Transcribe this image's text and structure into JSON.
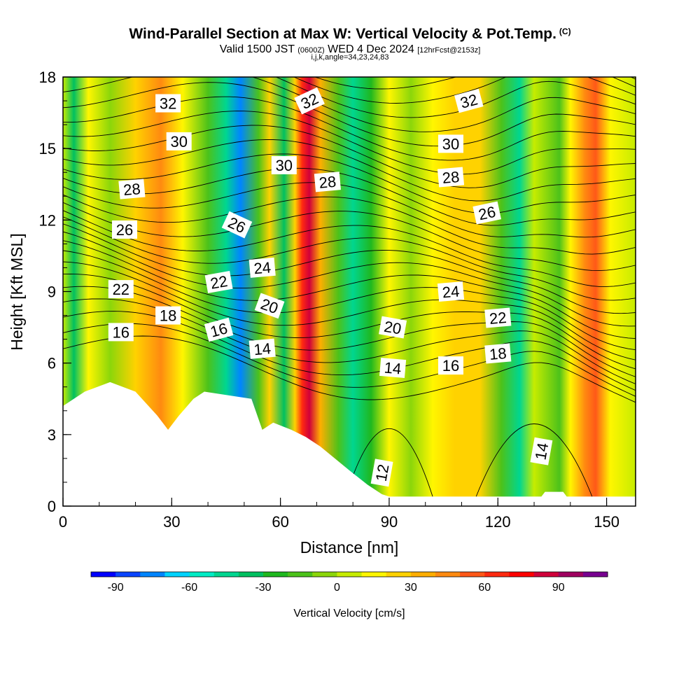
{
  "header": {
    "title": "Wind-Parallel Section at Max W: Vertical Velocity & Pot.Temp.",
    "title_mark": "(C)",
    "valid_prefix": "Valid 1500 JST",
    "valid_utc": "(0600Z)",
    "valid_date": "WED 4 Dec 2024",
    "forecast": "[12hrFcst@2153z]",
    "indices": "i,j,k,angle=34,23,24,83"
  },
  "chart_data": {
    "type": "heatmap",
    "xlabel": "Distance [nm]",
    "ylabel": "Height [Kft MSL]",
    "xlim": [
      0,
      158
    ],
    "ylim": [
      0,
      18
    ],
    "x_ticks": [
      0,
      30,
      60,
      90,
      120,
      150
    ],
    "x_tick_labels": [
      "0",
      "30",
      "60",
      "90",
      "120",
      "150"
    ],
    "y_ticks": [
      0,
      3,
      6,
      9,
      12,
      15,
      18
    ],
    "y_tick_labels": [
      "0",
      "3",
      "6",
      "9",
      "12",
      "15",
      "18"
    ],
    "colorbar": {
      "label": "Vertical Velocity [cm/s]",
      "min": -100,
      "max": 110,
      "step": 10,
      "tick_values": [
        -90,
        -60,
        -30,
        0,
        30,
        60,
        90
      ],
      "tick_labels": [
        "-90",
        "-60",
        "-30",
        "0",
        "30",
        "60",
        "90"
      ],
      "colors": [
        "#0000ff",
        "#0a45ff",
        "#0085ff",
        "#00d3ff",
        "#00ecc5",
        "#00d690",
        "#00c060",
        "#1fb81f",
        "#4cc21a",
        "#8bd60a",
        "#c6ec00",
        "#fff600",
        "#ffd200",
        "#ffae00",
        "#ff8a10",
        "#ff5818",
        "#ff2a10",
        "#ff0000",
        "#d0003a",
        "#a00060",
        "#780090"
      ]
    },
    "vertical_velocity_columns": [
      {
        "x": 0,
        "w": 5
      },
      {
        "x": 3,
        "w": -35
      },
      {
        "x": 7,
        "w": 10
      },
      {
        "x": 13,
        "w": -10
      },
      {
        "x": 20,
        "w": 25
      },
      {
        "x": 27,
        "w": 40
      },
      {
        "x": 33,
        "w": 15
      },
      {
        "x": 40,
        "w": -20
      },
      {
        "x": 45,
        "w": -45
      },
      {
        "x": 49,
        "w": -75
      },
      {
        "x": 54,
        "w": -20
      },
      {
        "x": 57,
        "w": 20
      },
      {
        "x": 61,
        "w": -35
      },
      {
        "x": 64,
        "w": 20
      },
      {
        "x": 66,
        "w": 65
      },
      {
        "x": 68,
        "w": 85
      },
      {
        "x": 71,
        "w": 30
      },
      {
        "x": 76,
        "w": -20
      },
      {
        "x": 80,
        "w": -50
      },
      {
        "x": 85,
        "w": -25
      },
      {
        "x": 90,
        "w": 10
      },
      {
        "x": 96,
        "w": -10
      },
      {
        "x": 102,
        "w": 15
      },
      {
        "x": 108,
        "w": 25
      },
      {
        "x": 115,
        "w": 20
      },
      {
        "x": 121,
        "w": -20
      },
      {
        "x": 126,
        "w": -45
      },
      {
        "x": 130,
        "w": 0
      },
      {
        "x": 137,
        "w": -20
      },
      {
        "x": 140,
        "w": 10
      },
      {
        "x": 144,
        "w": 40
      },
      {
        "x": 147,
        "w": 55
      },
      {
        "x": 151,
        "w": 15
      },
      {
        "x": 158,
        "w": 5
      }
    ],
    "terrain_height_kft": [
      {
        "x": 0,
        "h": 4.2
      },
      {
        "x": 3,
        "h": 4.5
      },
      {
        "x": 6,
        "h": 4.8
      },
      {
        "x": 13,
        "h": 5.2
      },
      {
        "x": 20,
        "h": 4.8
      },
      {
        "x": 26,
        "h": 3.8
      },
      {
        "x": 29,
        "h": 3.2
      },
      {
        "x": 32,
        "h": 3.8
      },
      {
        "x": 36,
        "h": 4.5
      },
      {
        "x": 39,
        "h": 4.8
      },
      {
        "x": 52,
        "h": 4.5
      },
      {
        "x": 55,
        "h": 3.2
      },
      {
        "x": 58,
        "h": 3.5
      },
      {
        "x": 63,
        "h": 3.2
      },
      {
        "x": 67,
        "h": 2.9
      },
      {
        "x": 71,
        "h": 2.5
      },
      {
        "x": 75,
        "h": 2.0
      },
      {
        "x": 79,
        "h": 1.5
      },
      {
        "x": 84,
        "h": 0.9
      },
      {
        "x": 88,
        "h": 0.5
      },
      {
        "x": 90,
        "h": 0.4
      },
      {
        "x": 132,
        "h": 0.4
      },
      {
        "x": 133,
        "h": 0.6
      },
      {
        "x": 138,
        "h": 0.6
      },
      {
        "x": 139,
        "h": 0.4
      },
      {
        "x": 158,
        "h": 0.4
      }
    ],
    "potential_temperature_labels": [
      {
        "value": "32",
        "x": 29,
        "y": 16.9,
        "angle": 0
      },
      {
        "value": "32",
        "x": 68,
        "y": 17.0,
        "angle": -25
      },
      {
        "value": "32",
        "x": 112,
        "y": 17.0,
        "angle": -15
      },
      {
        "value": "30",
        "x": 32,
        "y": 15.3,
        "angle": 0
      },
      {
        "value": "30",
        "x": 61,
        "y": 14.3,
        "angle": 0
      },
      {
        "value": "30",
        "x": 107,
        "y": 15.2,
        "angle": 0
      },
      {
        "value": "28",
        "x": 19,
        "y": 13.3,
        "angle": -5
      },
      {
        "value": "28",
        "x": 73,
        "y": 13.6,
        "angle": -5
      },
      {
        "value": "28",
        "x": 107,
        "y": 13.8,
        "angle": -5
      },
      {
        "value": "26",
        "x": 17,
        "y": 11.6,
        "angle": 0
      },
      {
        "value": "26",
        "x": 48,
        "y": 11.8,
        "angle": 25
      },
      {
        "value": "26",
        "x": 117,
        "y": 12.3,
        "angle": -12
      },
      {
        "value": "24",
        "x": 55,
        "y": 10.0,
        "angle": -5
      },
      {
        "value": "24",
        "x": 107,
        "y": 9.0,
        "angle": -5
      },
      {
        "value": "22",
        "x": 16,
        "y": 9.1,
        "angle": 0
      },
      {
        "value": "22",
        "x": 43,
        "y": 9.4,
        "angle": -10
      },
      {
        "value": "22",
        "x": 120,
        "y": 7.9,
        "angle": -5
      },
      {
        "value": "20",
        "x": 57,
        "y": 8.4,
        "angle": 20
      },
      {
        "value": "20",
        "x": 91,
        "y": 7.5,
        "angle": 10
      },
      {
        "value": "18",
        "x": 29,
        "y": 8.0,
        "angle": 0
      },
      {
        "value": "18",
        "x": 120,
        "y": 6.4,
        "angle": -5
      },
      {
        "value": "16",
        "x": 16,
        "y": 7.3,
        "angle": 0
      },
      {
        "value": "16",
        "x": 43,
        "y": 7.4,
        "angle": -15
      },
      {
        "value": "16",
        "x": 107,
        "y": 5.9,
        "angle": 0
      },
      {
        "value": "14",
        "x": 55,
        "y": 6.6,
        "angle": -5
      },
      {
        "value": "14",
        "x": 91,
        "y": 5.8,
        "angle": 5
      },
      {
        "value": "14",
        "x": 132,
        "y": 2.3,
        "angle": -80
      },
      {
        "value": "12",
        "x": 88,
        "y": 1.4,
        "angle": -80
      }
    ]
  }
}
